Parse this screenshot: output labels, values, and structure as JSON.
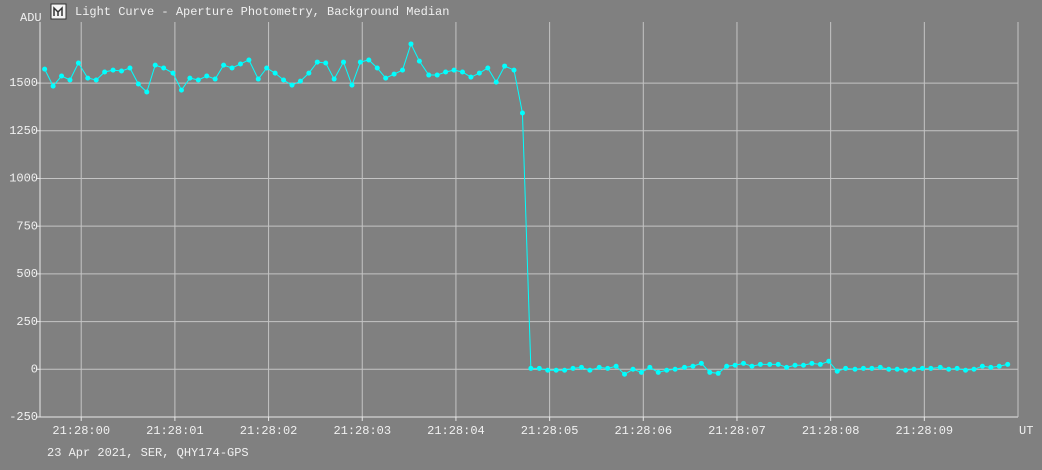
{
  "chart_data": {
    "type": "line",
    "title": "Light Curve - Aperture Photometry, Background Median",
    "y_label": "ADU",
    "x_label": "UT",
    "footer": "23 Apr 2021, SER, QHY174-GPS",
    "color": "#00ffff",
    "grid": true,
    "xlim": [
      -0.44,
      10.0
    ],
    "ylim": [
      -250,
      1820
    ],
    "xticks": [
      {
        "value": 0,
        "label": "21:28:00"
      },
      {
        "value": 1,
        "label": "21:28:01"
      },
      {
        "value": 2,
        "label": "21:28:02"
      },
      {
        "value": 3,
        "label": "21:28:03"
      },
      {
        "value": 4,
        "label": "21:28:04"
      },
      {
        "value": 5,
        "label": "21:28:05"
      },
      {
        "value": 6,
        "label": "21:28:06"
      },
      {
        "value": 7,
        "label": "21:28:07"
      },
      {
        "value": 8,
        "label": "21:28:08"
      },
      {
        "value": 9,
        "label": "21:28:09"
      }
    ],
    "yticks": [
      -250,
      0,
      250,
      500,
      750,
      1000,
      1250,
      1500
    ],
    "x": [
      -0.39,
      -0.3,
      -0.21,
      -0.12,
      -0.03,
      0.07,
      0.16,
      0.25,
      0.34,
      0.43,
      0.52,
      0.61,
      0.7,
      0.79,
      0.88,
      0.98,
      1.07,
      1.16,
      1.25,
      1.34,
      1.43,
      1.52,
      1.61,
      1.7,
      1.79,
      1.89,
      1.98,
      2.07,
      2.16,
      2.25,
      2.34,
      2.43,
      2.52,
      2.61,
      2.7,
      2.8,
      2.89,
      2.98,
      3.07,
      3.16,
      3.25,
      3.34,
      3.43,
      3.52,
      3.61,
      3.71,
      3.8,
      3.89,
      3.98,
      4.07,
      4.16,
      4.25,
      4.34,
      4.43,
      4.52,
      4.62,
      4.71,
      4.8,
      4.89,
      4.98,
      5.07,
      5.16,
      5.25,
      5.34,
      5.43,
      5.53,
      5.62,
      5.71,
      5.8,
      5.89,
      5.98,
      6.07,
      6.16,
      6.25,
      6.34,
      6.44,
      6.53,
      6.62,
      6.71,
      6.8,
      6.89,
      6.98,
      7.07,
      7.16,
      7.25,
      7.35,
      7.44,
      7.53,
      7.62,
      7.71,
      7.8,
      7.89,
      7.98,
      8.07,
      8.16,
      8.26,
      8.35,
      8.44,
      8.53,
      8.62,
      8.71,
      8.8,
      8.89,
      8.98,
      9.07,
      9.17,
      9.26,
      9.35,
      9.44,
      9.53,
      9.62,
      9.71,
      9.8,
      9.89
    ],
    "values": [
      1573,
      1484,
      1537,
      1516,
      1605,
      1526,
      1516,
      1558,
      1568,
      1563,
      1579,
      1495,
      1453,
      1594,
      1579,
      1552,
      1463,
      1526,
      1516,
      1537,
      1521,
      1594,
      1579,
      1600,
      1621,
      1521,
      1579,
      1552,
      1516,
      1489,
      1510,
      1552,
      1610,
      1605,
      1521,
      1610,
      1489,
      1610,
      1621,
      1579,
      1526,
      1547,
      1568,
      1705,
      1615,
      1542,
      1542,
      1558,
      1568,
      1558,
      1531,
      1552,
      1579,
      1505,
      1589,
      1568,
      1343,
      5,
      5,
      -5,
      -5,
      -5,
      5,
      10,
      -5,
      10,
      5,
      16,
      -26,
      0,
      -16,
      10,
      -16,
      -5,
      0,
      10,
      16,
      31,
      -16,
      -21,
      16,
      21,
      31,
      16,
      26,
      26,
      26,
      10,
      21,
      21,
      31,
      26,
      42,
      -10,
      5,
      0,
      5,
      5,
      10,
      0,
      0,
      -5,
      0,
      5,
      5,
      10,
      0,
      5,
      -5,
      0,
      16,
      10,
      16,
      26
    ]
  }
}
